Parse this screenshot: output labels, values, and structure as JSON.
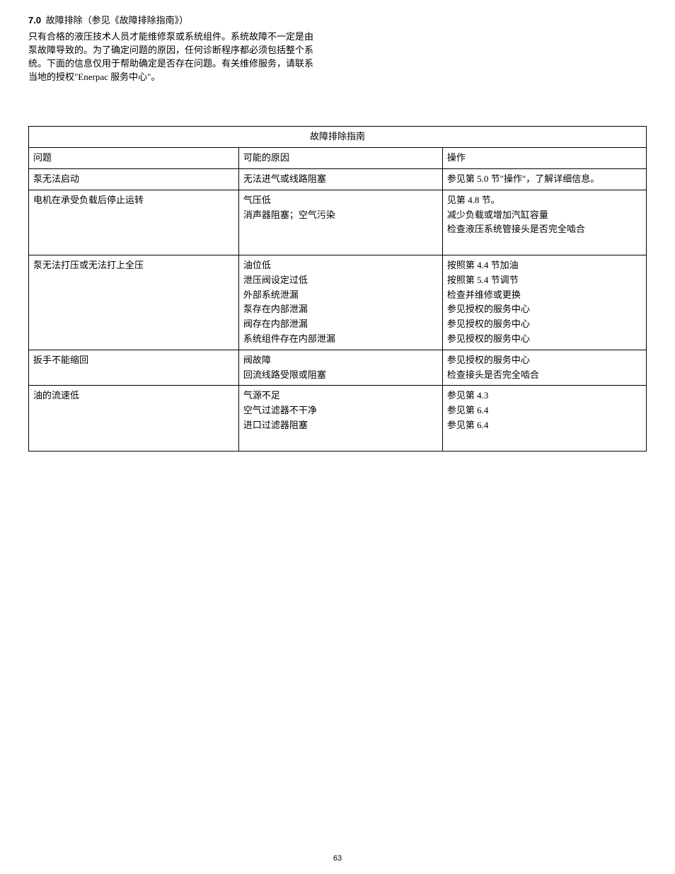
{
  "section": {
    "number": "7.0",
    "title": "故障排除（参见《故障排除指南》）",
    "intro": "只有合格的液压技术人员才能维修泵或系统组件。系统故障不一定是由泵故障导致的。为了确定问题的原因，任何诊断程序都必须包括整个系统。下面的信息仅用于帮助确定是否存在问题。有关维修服务，请联系当地的授权\"Enerpac 服务中心\"。"
  },
  "table": {
    "title": "故障排除指南",
    "headers": {
      "problem": "问题",
      "cause": "可能的原因",
      "action": "操作"
    },
    "rows": [
      {
        "problem": "泵无法启动",
        "causes": [
          "无法进气或线路阻塞"
        ],
        "actions": [
          "参见第 5.0 节\"操作\"，了解详细信息。"
        ]
      },
      {
        "problem": "电机在承受负载后停止运转",
        "causes": [
          "气压低",
          "消声器阻塞；空气污染"
        ],
        "actions": [
          "见第 4.8 节。",
          "减少负载或增加汽缸容量",
          "检查液压系统管接头是否完全啮合"
        ],
        "trailing_blank": true
      },
      {
        "problem": "泵无法打压或无法打上全压",
        "causes": [
          "油位低",
          "泄压阀设定过低",
          "外部系统泄漏",
          "泵存在内部泄漏",
          "阀存在内部泄漏",
          "系统组件存在内部泄漏"
        ],
        "actions": [
          "按照第 4.4 节加油",
          "按照第 5.4 节调节",
          "检查并维修或更换",
          "参见授权的服务中心",
          "参见授权的服务中心",
          "参见授权的服务中心"
        ]
      },
      {
        "problem": "扳手不能缩回",
        "causes": [
          "阀故障",
          "回流线路受限或阻塞"
        ],
        "actions": [
          "参见授权的服务中心",
          "检查接头是否完全啮合"
        ]
      },
      {
        "problem": "油的流速低",
        "causes": [
          "气源不足",
          "空气过滤器不干净",
          "进口过滤器阻塞"
        ],
        "actions": [
          "参见第 4.3",
          "参见第 6.4",
          "参见第 6.4"
        ],
        "trailing_blank": true
      }
    ]
  },
  "page_number": "63"
}
